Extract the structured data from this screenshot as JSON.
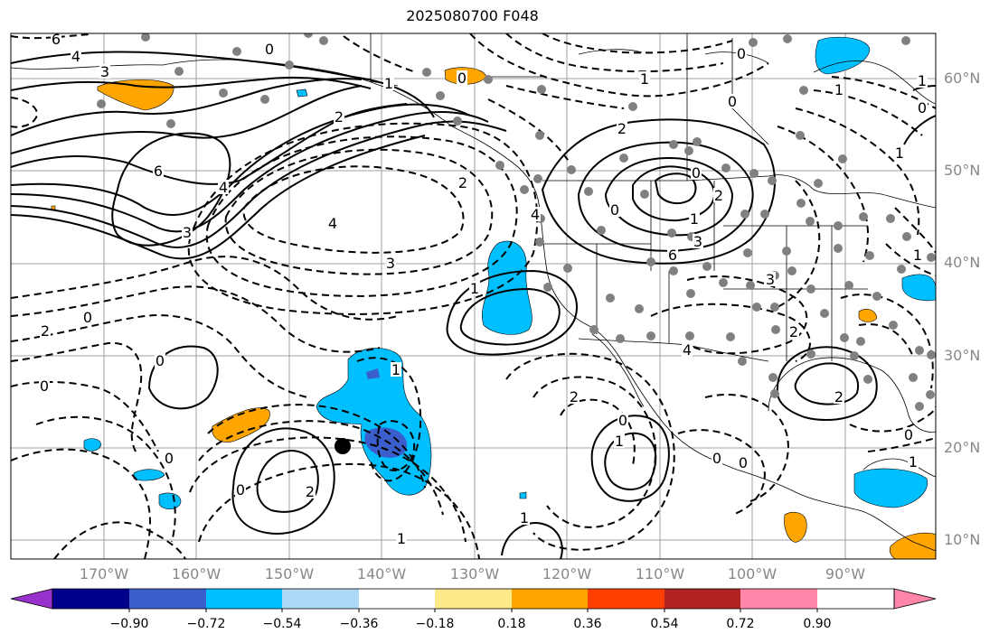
{
  "title": "2025080700 F048",
  "lat_labels": [
    "60°N",
    "50°N",
    "40°N",
    "30°N",
    "20°N",
    "10°N"
  ],
  "lon_labels": [
    "170°W",
    "160°W",
    "150°W",
    "140°W",
    "130°W",
    "120°W",
    "110°W",
    "100°W",
    "90°W"
  ],
  "colorbar": {
    "ticks": [
      "−0.90",
      "−0.72",
      "−0.54",
      "−0.36",
      "−0.18",
      "0.18",
      "0.36",
      "0.54",
      "0.72",
      "0.90"
    ],
    "colors": [
      "#9932cc",
      "#00008b",
      "#3a5fcd",
      "#00bfff",
      "#add8f6",
      "#ffffff",
      "#fde98a",
      "#ffa500",
      "#ff3f00",
      "#b22222",
      "#ff85a9"
    ]
  },
  "contour_labels": [
    "6",
    "4",
    "3",
    "0",
    "1",
    "0",
    "0",
    "2",
    "4",
    "6",
    "3",
    "4",
    "2",
    "0",
    "2",
    "1",
    "4",
    "3",
    "2",
    "1",
    "0",
    "0",
    "1",
    "2",
    "3",
    "6",
    "3",
    "4",
    "2",
    "1",
    "0",
    "1",
    "1",
    "2",
    "0",
    "1",
    "0",
    "0",
    "0",
    "2",
    "1",
    "1",
    "1",
    "0",
    "0",
    "2",
    "0",
    "1",
    "0",
    "0",
    "1"
  ],
  "colors": {
    "shading_neg": "#00bfff",
    "shading_neg_strong": "#3a5fcd",
    "shading_pos": "#ffa500",
    "dots": "#808080"
  }
}
